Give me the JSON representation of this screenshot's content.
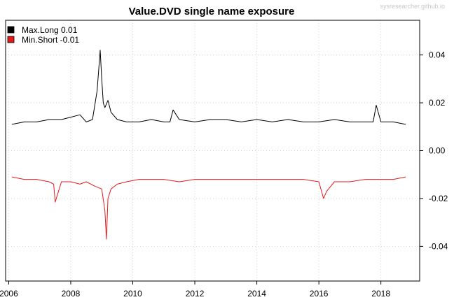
{
  "watermark": "sysresearcher.github.io",
  "chart_data": {
    "type": "line",
    "title": "Value.DVD single name exposure",
    "xlabel": "",
    "ylabel": "",
    "xlim": [
      2005.9,
      2019.25
    ],
    "ylim": [
      -0.0545,
      0.0545
    ],
    "x_ticks": [
      "2006",
      "2008",
      "2010",
      "2012",
      "2014",
      "2016",
      "2018"
    ],
    "y_ticks": [
      "0.04",
      "0.02",
      "0.00",
      "-0.02",
      "-0.04"
    ],
    "y_tick_values": [
      0.04,
      0.02,
      0.0,
      -0.02,
      -0.04
    ],
    "grid": true,
    "legend_position": "top-left",
    "series": [
      {
        "name": "Max.Long  0.01",
        "color": "#000000",
        "x": [
          2006.1,
          2006.5,
          2006.9,
          2007.3,
          2007.7,
          2008.0,
          2008.3,
          2008.5,
          2008.7,
          2008.85,
          2008.95,
          2009.0,
          2009.05,
          2009.1,
          2009.2,
          2009.3,
          2009.5,
          2009.8,
          2010.2,
          2010.6,
          2011.0,
          2011.2,
          2011.3,
          2011.5,
          2012.0,
          2012.5,
          2013.0,
          2013.5,
          2014.0,
          2014.5,
          2015.0,
          2015.5,
          2016.0,
          2016.5,
          2017.0,
          2017.5,
          2017.75,
          2017.85,
          2018.0,
          2018.4,
          2018.8
        ],
        "y": [
          0.011,
          0.012,
          0.012,
          0.013,
          0.013,
          0.014,
          0.015,
          0.012,
          0.013,
          0.025,
          0.042,
          0.03,
          0.02,
          0.018,
          0.021,
          0.016,
          0.013,
          0.012,
          0.012,
          0.013,
          0.012,
          0.012,
          0.017,
          0.013,
          0.012,
          0.013,
          0.013,
          0.012,
          0.013,
          0.012,
          0.013,
          0.012,
          0.012,
          0.013,
          0.012,
          0.012,
          0.012,
          0.019,
          0.012,
          0.012,
          0.011
        ]
      },
      {
        "name": "Min.Short -0.01",
        "color": "#e41a1c",
        "x": [
          2006.1,
          2006.5,
          2006.9,
          2007.3,
          2007.45,
          2007.5,
          2007.7,
          2008.0,
          2008.3,
          2008.5,
          2008.8,
          2009.0,
          2009.1,
          2009.15,
          2009.2,
          2009.3,
          2009.5,
          2009.8,
          2010.2,
          2010.6,
          2011.0,
          2011.5,
          2012.0,
          2012.5,
          2013.0,
          2013.5,
          2014.0,
          2014.5,
          2015.0,
          2015.5,
          2016.0,
          2016.15,
          2016.25,
          2016.5,
          2017.0,
          2017.5,
          2018.0,
          2018.4,
          2018.8
        ],
        "y": [
          -0.011,
          -0.012,
          -0.012,
          -0.013,
          -0.014,
          -0.0215,
          -0.013,
          -0.013,
          -0.014,
          -0.013,
          -0.015,
          -0.016,
          -0.025,
          -0.037,
          -0.02,
          -0.016,
          -0.014,
          -0.013,
          -0.012,
          -0.012,
          -0.012,
          -0.013,
          -0.012,
          -0.012,
          -0.012,
          -0.012,
          -0.012,
          -0.012,
          -0.012,
          -0.012,
          -0.013,
          -0.02,
          -0.017,
          -0.013,
          -0.013,
          -0.012,
          -0.012,
          -0.012,
          -0.011
        ]
      }
    ]
  }
}
